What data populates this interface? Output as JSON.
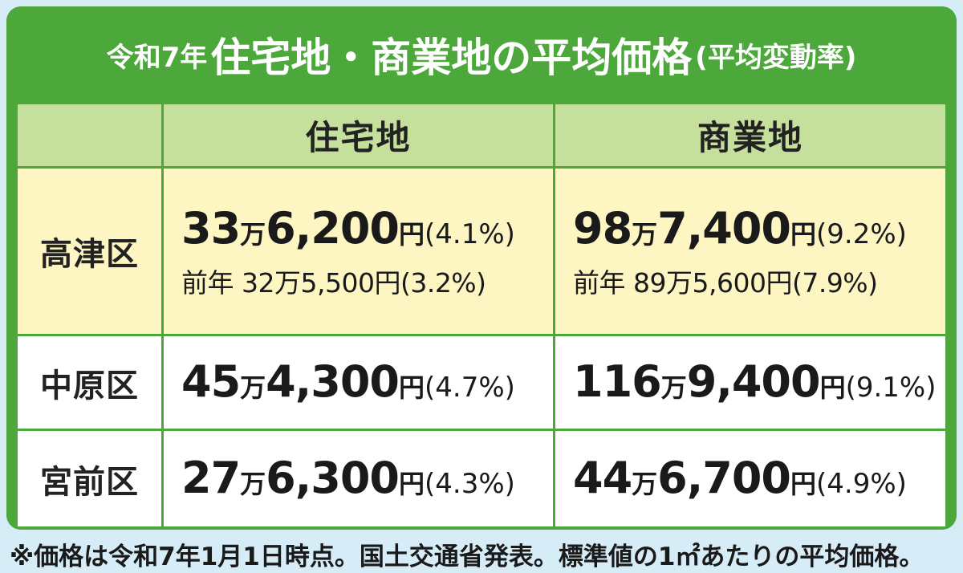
{
  "title": {
    "prefix": "令和7年",
    "main": "住宅地・商業地の平均価格",
    "suffix": "(平均変動率)"
  },
  "headers": {
    "residential": "住宅地",
    "commercial": "商業地"
  },
  "rows": [
    {
      "district": "高津区",
      "residential": {
        "man": "33",
        "rest": "6,200",
        "yen": "円",
        "rate": "(4.1%)",
        "prev": "前年 32万5,500円(3.2%)"
      },
      "commercial": {
        "man": "98",
        "rest": "7,400",
        "yen": "円",
        "rate": "(9.2%)",
        "prev": "前年 89万5,600円(7.9%)"
      }
    },
    {
      "district": "中原区",
      "residential": {
        "man": "45",
        "rest": "4,300",
        "yen": "円",
        "rate": "(4.7%)"
      },
      "commercial": {
        "man": "116",
        "rest": "9,400",
        "yen": "円",
        "rate": "(9.1%)"
      }
    },
    {
      "district": "宮前区",
      "residential": {
        "man": "27",
        "rest": "6,300",
        "yen": "円",
        "rate": "(4.3%)"
      },
      "commercial": {
        "man": "44",
        "rest": "6,700",
        "yen": "円",
        "rate": "(4.9%)"
      }
    }
  ],
  "man_unit": "万",
  "footnote": "※価格は令和7年1月1日時点。国土交通省発表。標準値の1㎡あたりの平均価格。"
}
